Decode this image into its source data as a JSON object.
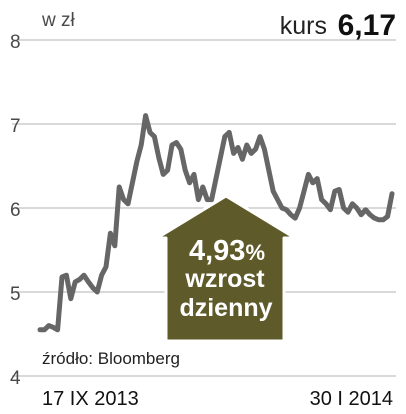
{
  "header": {
    "unit": "w zł",
    "kurs_label": "kurs",
    "kurs_value": "6,17"
  },
  "badge": {
    "change": "4,93",
    "percent": "%",
    "line2": "wzrost",
    "line3": "dzienny",
    "color": "#5e5a2a"
  },
  "source": "źródło: Bloomberg",
  "colors": {
    "line": "#666666",
    "grid": "#b3b3b3"
  },
  "chart_data": {
    "type": "line",
    "title": "",
    "xlabel": "",
    "ylabel": "w zł",
    "ylim": [
      4,
      8
    ],
    "y_ticks": [
      "4",
      "5",
      "6",
      "7",
      "8"
    ],
    "x_start_label": "17 IX 2013",
    "x_end_label": "30 I 2014",
    "grid": true,
    "series": [
      {
        "values": [
          4.55,
          4.55,
          4.6,
          4.58,
          4.55,
          5.18,
          5.2,
          4.92,
          5.12,
          5.15,
          5.2,
          5.12,
          5.05,
          5.0,
          5.2,
          5.3,
          5.7,
          5.55,
          6.25,
          6.1,
          6.05,
          6.3,
          6.55,
          6.75,
          7.1,
          6.9,
          6.85,
          6.6,
          6.4,
          6.45,
          6.75,
          6.78,
          6.7,
          6.45,
          6.3,
          6.4,
          6.1,
          6.25,
          6.1,
          6.1,
          6.35,
          6.6,
          6.85,
          6.9,
          6.65,
          6.72,
          6.58,
          6.75,
          6.65,
          6.7,
          6.85,
          6.7,
          6.45,
          6.2,
          6.1,
          6.0,
          5.98,
          5.92,
          5.88,
          6.0,
          6.2,
          6.4,
          6.3,
          6.35,
          6.1,
          6.05,
          5.98,
          6.2,
          6.22,
          6.0,
          5.95,
          6.05,
          6.0,
          5.92,
          5.98,
          5.92,
          5.88,
          5.86,
          5.86,
          5.9,
          6.17
        ]
      }
    ]
  }
}
